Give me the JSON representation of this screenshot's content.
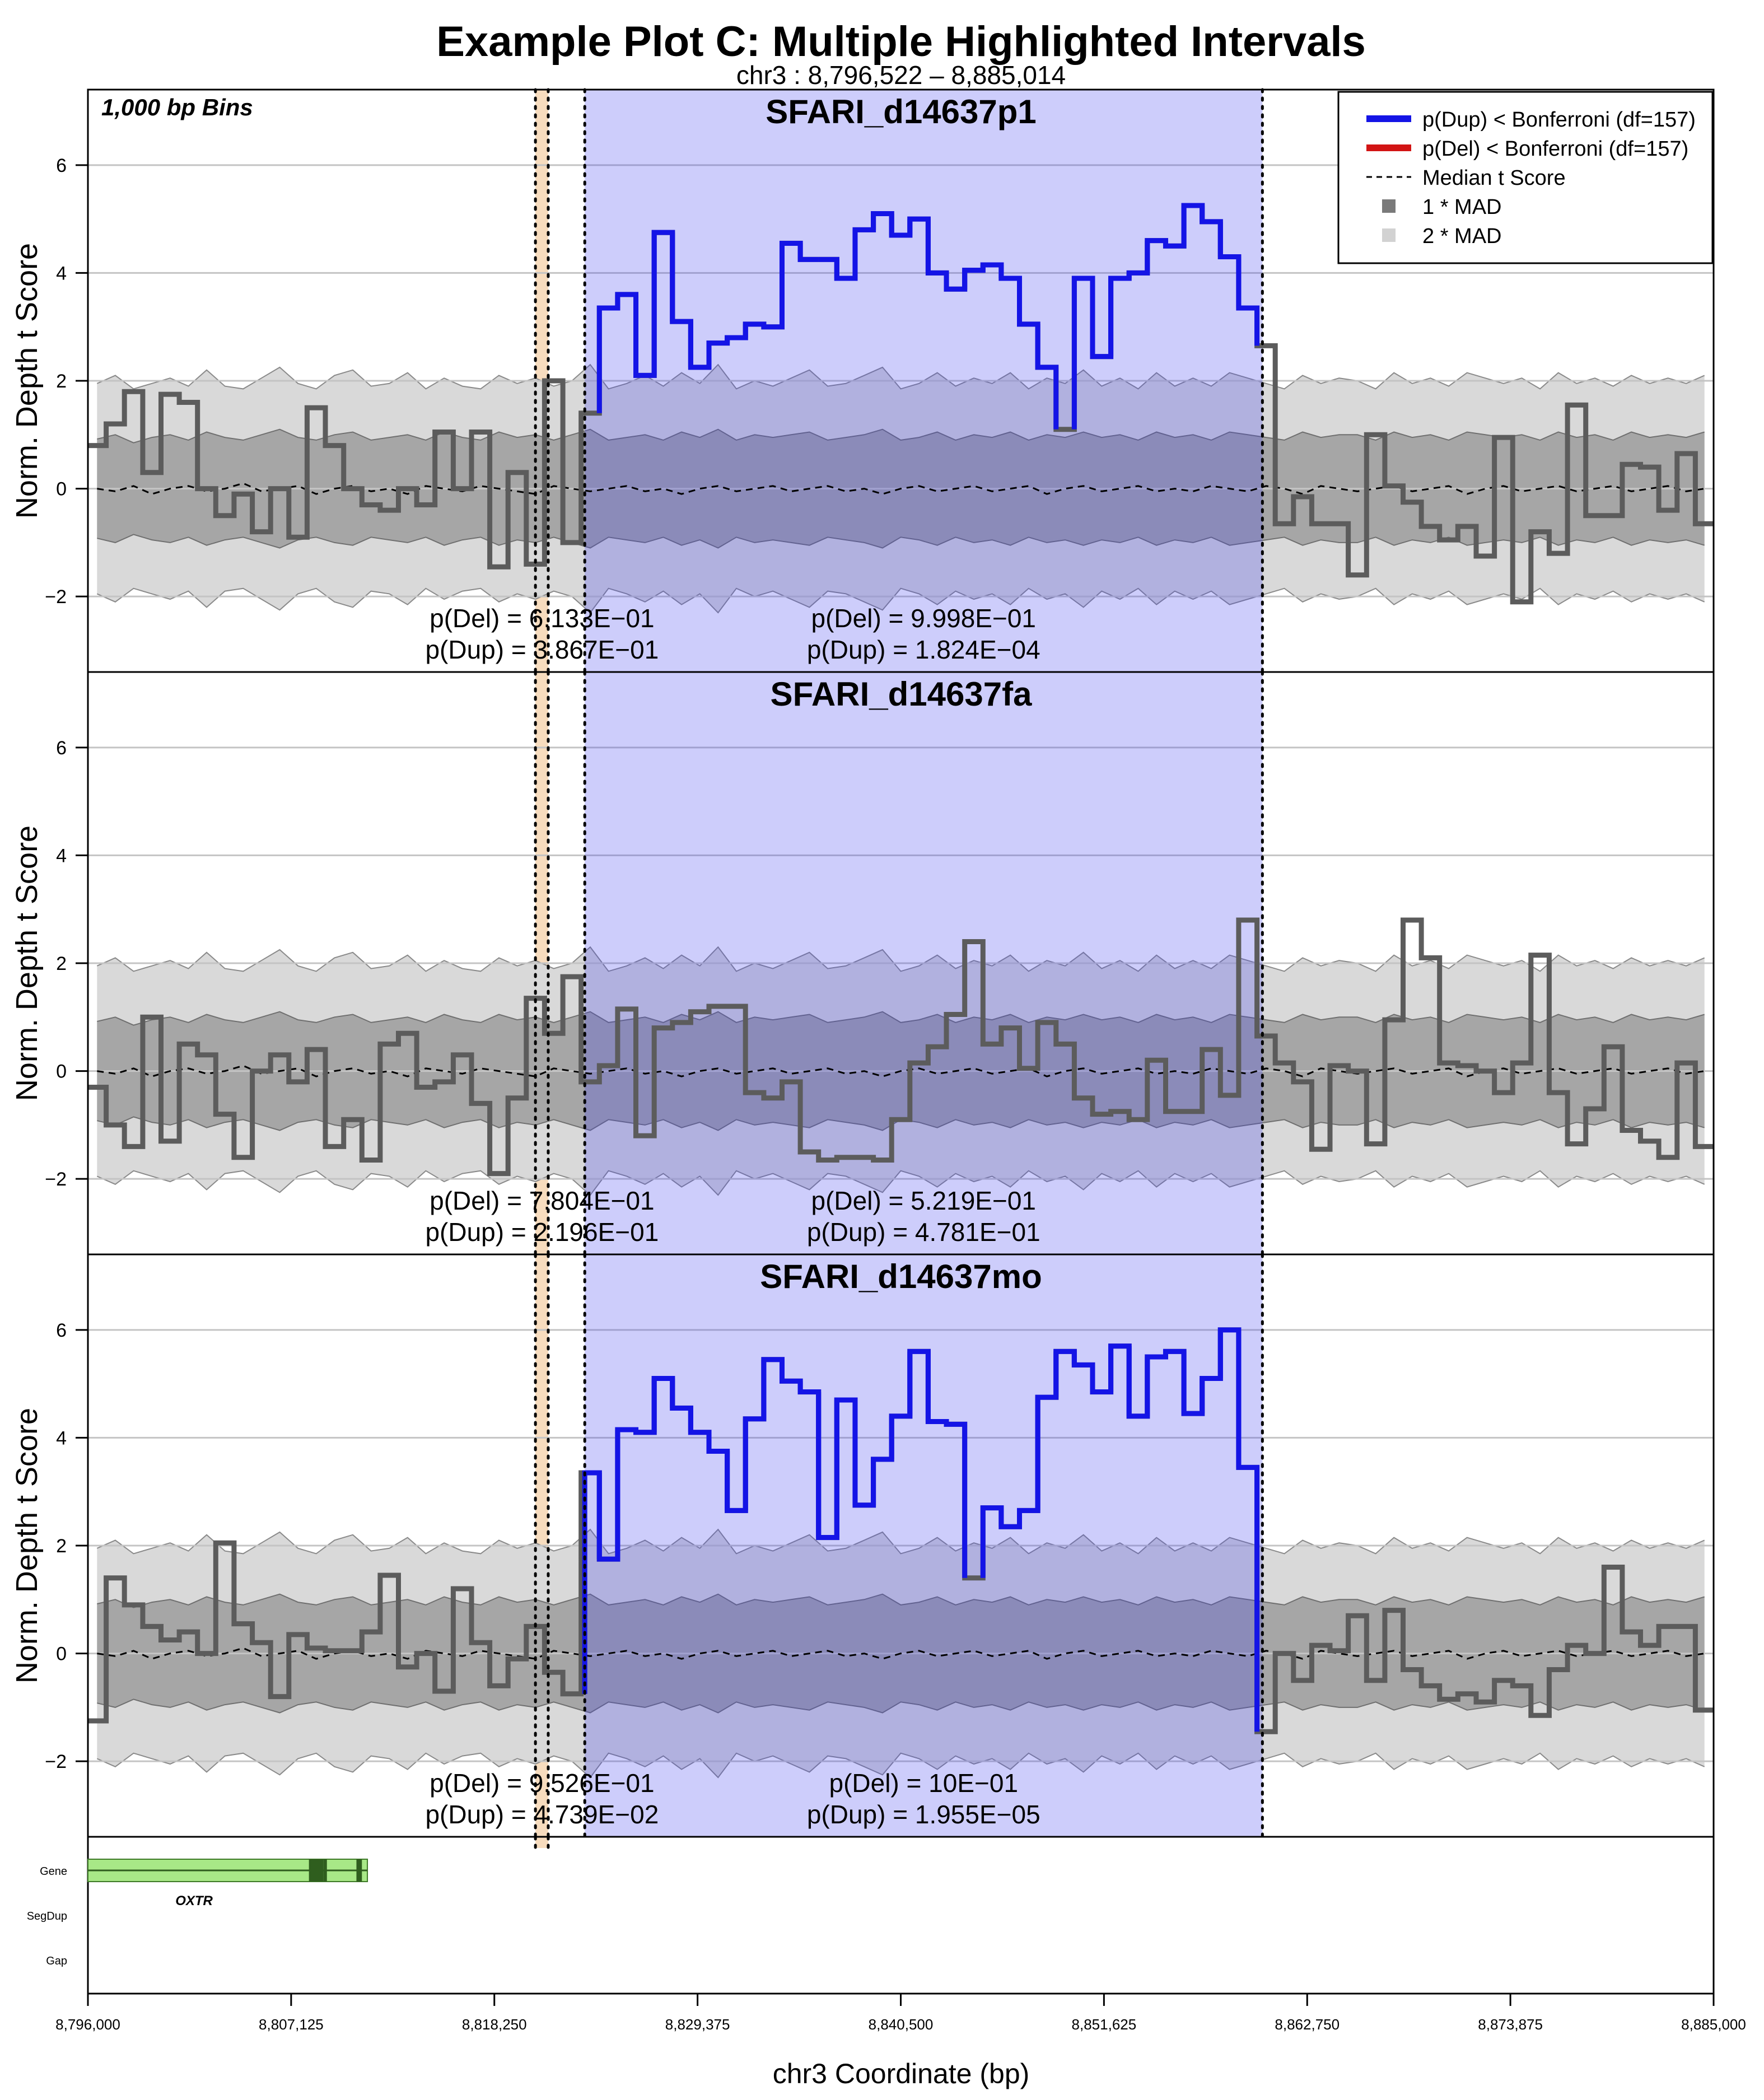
{
  "chart_data": {
    "type": "line",
    "title": "Example Plot C: Multiple Highlighted Intervals",
    "subtitle": "chr3 : 8,796,522 – 8,885,014",
    "xlabel": "chr3 Coordinate (bp)",
    "ylabel": "Norm. Depth t Score",
    "bin_label": "1,000 bp Bins",
    "xlim": [
      8796000,
      8885000
    ],
    "ylim": [
      -3.4,
      7.4
    ],
    "yticks": [
      -2,
      0,
      2,
      4,
      6
    ],
    "xticks": [
      8796000,
      8807125,
      8818250,
      8829375,
      8840500,
      8851625,
      8862750,
      8873875,
      8885000
    ],
    "xtick_labels": [
      "8,796,000",
      "8,807,125",
      "8,818,250",
      "8,829,375",
      "8,840,500",
      "8,851,625",
      "8,862,750",
      "8,873,875",
      "8,885,000"
    ],
    "grid": true,
    "legend_position": "top-right",
    "colors": {
      "dup": "#1414e6",
      "del": "#d21414",
      "sample": "#5c5c5c",
      "mad1": "#a6a6a6",
      "mad2": "#d9d9d9",
      "highlight_main": "#ccccfa",
      "highlight_small": "#f7dcbe",
      "gene": "#a8e887",
      "exon": "#2f5e1e"
    },
    "legend": [
      {
        "label": "p(Dup) < Bonferroni (df=157)",
        "kind": "line",
        "color": "#1414e6"
      },
      {
        "label": "p(Del) < Bonferroni (df=157)",
        "kind": "line",
        "color": "#d21414"
      },
      {
        "label": "Median t Score",
        "kind": "dash",
        "color": "#000000"
      },
      {
        "label": "1 * MAD",
        "kind": "box",
        "color": "#7a7a7a"
      },
      {
        "label": "2 * MAD",
        "kind": "box",
        "color": "#d2d2d2"
      }
    ],
    "highlight_intervals": [
      {
        "start": 8820500,
        "end": 8821200,
        "kind": "small"
      },
      {
        "start": 8823200,
        "end": 8860300,
        "kind": "main"
      }
    ],
    "band_1mad": [
      0.92,
      1.0,
      0.85,
      0.95,
      1.0,
      0.9,
      1.05,
      0.95,
      0.9,
      1.0,
      1.1,
      0.95,
      0.9,
      1.0,
      1.05,
      0.9,
      0.95,
      1.0,
      0.9,
      1.05,
      0.95,
      0.9,
      1.05,
      0.95,
      1.0,
      0.9,
      1.0,
      1.1,
      0.9,
      0.95,
      1.0,
      0.9,
      1.05,
      0.95,
      1.1,
      0.9,
      1.0,
      0.95,
      1.0,
      1.05,
      0.9,
      0.95,
      1.0,
      1.1,
      0.9,
      0.95,
      1.05,
      0.9,
      1.0,
      0.95,
      1.05,
      0.9,
      1.0,
      0.95,
      1.05,
      0.95,
      1.0,
      0.9,
      1.05,
      0.95,
      1.0,
      0.9,
      1.05,
      1.0,
      0.95,
      0.9,
      1.05,
      0.95,
      1.0,
      1.0,
      0.9,
      1.05,
      0.95,
      1.0,
      0.9,
      1.05,
      1.0,
      0.95,
      1.0,
      0.9,
      1.05,
      0.95,
      1.0,
      0.9,
      1.05,
      0.95,
      1.0,
      0.95,
      1.05
    ],
    "band_2mad": [
      1.95,
      2.1,
      1.85,
      1.95,
      2.05,
      1.9,
      2.2,
      1.9,
      1.85,
      2.05,
      2.25,
      1.95,
      1.85,
      2.1,
      2.2,
      1.9,
      1.95,
      2.15,
      1.85,
      2.05,
      1.9,
      1.85,
      2.1,
      1.95,
      2.05,
      1.9,
      2.0,
      2.3,
      1.85,
      1.95,
      2.1,
      1.9,
      2.15,
      1.95,
      2.3,
      1.85,
      2.0,
      1.9,
      2.05,
      2.2,
      1.9,
      1.95,
      2.1,
      2.25,
      1.85,
      1.95,
      2.15,
      1.9,
      2.05,
      1.95,
      2.15,
      1.85,
      2.05,
      1.95,
      2.2,
      1.9,
      2.05,
      1.85,
      2.15,
      1.9,
      2.05,
      1.9,
      2.15,
      2.05,
      1.95,
      1.85,
      2.1,
      1.95,
      2.05,
      2.0,
      1.85,
      2.15,
      1.95,
      2.05,
      1.9,
      2.15,
      2.05,
      1.95,
      2.05,
      1.85,
      2.15,
      1.95,
      2.05,
      1.9,
      2.1,
      1.95,
      2.05,
      1.95,
      2.1
    ],
    "median": [
      0.0,
      -0.05,
      0.05,
      -0.1,
      0.0,
      0.05,
      -0.05,
      0.0,
      0.1,
      -0.05,
      0.0,
      0.05,
      -0.1,
      0.0,
      0.05,
      -0.05,
      0.0,
      -0.1,
      0.05,
      0.0,
      -0.05,
      0.05,
      0.0,
      -0.05,
      -0.1,
      0.05,
      0.0,
      -0.05,
      0.0,
      0.05,
      -0.05,
      0.0,
      -0.1,
      0.0,
      0.05,
      -0.05,
      0.0,
      0.05,
      -0.05,
      0.0,
      0.05,
      -0.05,
      0.0,
      -0.1,
      0.0,
      0.05,
      -0.05,
      0.0,
      0.05,
      -0.05,
      0.0,
      0.05,
      -0.1,
      0.0,
      0.05,
      -0.05,
      0.0,
      0.05,
      -0.05,
      0.0,
      -0.05,
      0.05,
      0.0,
      -0.05,
      0.05,
      0.0,
      -0.1,
      0.05,
      0.0,
      -0.05,
      0.0,
      0.05,
      -0.05,
      0.0,
      0.05,
      -0.1,
      0.0,
      0.05,
      -0.05,
      0.0,
      0.05,
      -0.05,
      0.0,
      0.05,
      -0.05,
      0.0,
      0.05,
      -0.05,
      0.0
    ],
    "series": [
      {
        "name": "SFARI_d14637p1",
        "values": [
          0.8,
          1.2,
          1.8,
          0.3,
          1.75,
          1.6,
          0.0,
          -0.5,
          -0.1,
          -0.8,
          0.0,
          -0.9,
          1.5,
          0.8,
          0.0,
          -0.3,
          -0.4,
          0.0,
          -0.3,
          1.05,
          0.0,
          1.05,
          -1.45,
          0.3,
          -1.4,
          2.0,
          -1.0,
          1.4,
          3.35,
          3.6,
          2.1,
          4.75,
          3.1,
          2.25,
          2.7,
          2.8,
          3.05,
          3.0,
          4.55,
          4.25,
          4.25,
          3.9,
          4.8,
          5.1,
          4.7,
          5.0,
          4.0,
          3.7,
          4.05,
          4.15,
          3.9,
          3.05,
          2.25,
          1.1,
          3.9,
          2.45,
          3.9,
          4.0,
          4.6,
          4.5,
          5.25,
          4.95,
          4.3,
          3.35,
          2.65,
          -0.65,
          -0.15,
          -0.65,
          -0.65,
          -1.6,
          1.0,
          0.05,
          -0.25,
          -0.7,
          -0.95,
          -0.7,
          -1.25,
          0.95,
          -2.1,
          -0.8,
          -1.2,
          1.55,
          -0.5,
          -0.5,
          0.45,
          0.4,
          -0.4,
          0.65,
          -0.65
        ],
        "pvalues": [
          {
            "del": "p(Del) = 6.133E−01",
            "dup": "p(Dup) = 3.867E−01",
            "x": 8820860
          },
          {
            "del": "p(Del) = 9.998E−01",
            "dup": "p(Dup) = 1.824E−04",
            "x": 8841750
          }
        ]
      },
      {
        "name": "SFARI_d14637fa",
        "values": [
          -0.3,
          -1.0,
          -1.4,
          1.0,
          -1.3,
          0.5,
          0.3,
          -0.8,
          -1.6,
          0.0,
          0.3,
          -0.2,
          0.4,
          -1.4,
          -0.9,
          -1.65,
          0.5,
          0.7,
          -0.3,
          -0.2,
          0.3,
          -0.6,
          -1.9,
          -0.5,
          1.35,
          0.7,
          1.75,
          -0.2,
          0.1,
          1.15,
          -1.2,
          0.8,
          0.9,
          1.1,
          1.2,
          1.2,
          -0.4,
          -0.5,
          -0.2,
          -1.5,
          -1.65,
          -1.6,
          -1.6,
          -1.65,
          -0.9,
          0.15,
          0.45,
          1.05,
          2.4,
          0.5,
          0.8,
          0.05,
          0.9,
          0.5,
          -0.5,
          -0.8,
          -0.75,
          -0.9,
          0.2,
          -0.75,
          -0.75,
          0.4,
          -0.45,
          2.8,
          0.65,
          0.15,
          -0.2,
          -1.45,
          0.1,
          0.0,
          -1.35,
          0.95,
          2.8,
          2.1,
          0.15,
          0.1,
          0.0,
          -0.4,
          0.15,
          2.15,
          -0.4,
          -1.35,
          -0.7,
          0.45,
          -1.1,
          -1.3,
          -1.6,
          0.15,
          -1.4
        ],
        "pvalues": [
          {
            "del": "p(Del) = 7.804E−01",
            "dup": "p(Dup) = 2.196E−01",
            "x": 8820860
          },
          {
            "del": "p(Del) = 5.219E−01",
            "dup": "p(Dup) = 4.781E−01",
            "x": 8841750
          }
        ]
      },
      {
        "name": "SFARI_d14637mo",
        "values": [
          -1.25,
          1.4,
          0.9,
          0.5,
          0.25,
          0.4,
          0.0,
          2.05,
          0.55,
          0.2,
          -0.8,
          0.35,
          0.1,
          0.05,
          0.05,
          0.4,
          1.45,
          -0.25,
          0.0,
          -0.7,
          1.2,
          0.2,
          -0.6,
          -0.1,
          0.5,
          -0.35,
          -0.75,
          3.35,
          1.75,
          4.15,
          4.1,
          5.1,
          4.55,
          4.1,
          3.75,
          2.65,
          4.35,
          5.45,
          5.05,
          4.85,
          2.15,
          4.7,
          2.75,
          3.6,
          4.4,
          5.6,
          4.3,
          4.25,
          1.4,
          2.7,
          2.35,
          2.65,
          4.75,
          5.6,
          5.35,
          4.85,
          5.7,
          4.4,
          5.5,
          5.6,
          4.45,
          5.1,
          6.0,
          3.45,
          -1.45,
          0.0,
          -0.5,
          0.15,
          0.05,
          0.7,
          -0.5,
          0.8,
          -0.3,
          -0.6,
          -0.85,
          -0.75,
          -0.9,
          -0.5,
          -0.6,
          -1.15,
          -0.3,
          0.15,
          0.0,
          1.6,
          0.4,
          0.15,
          0.5,
          0.5,
          -1.05
        ],
        "pvalues": [
          {
            "del": "p(Del) = 9.526E−01",
            "dup": "p(Dup) = 4.739E−02",
            "x": 8820860
          },
          {
            "del": "p(Del) = 10E−01",
            "dup": "p(Dup) = 1.955E−05",
            "x": 8841750
          }
        ]
      }
    ],
    "annotation_tracks": [
      "Gene",
      "SegDup",
      "Gap"
    ],
    "genes": [
      {
        "name": "OXTR",
        "start": 8796000,
        "end": 8811300,
        "exons": [
          [
            8808100,
            8808900
          ],
          [
            8808900,
            8809000
          ],
          [
            8810700,
            8811000
          ]
        ]
      }
    ]
  }
}
